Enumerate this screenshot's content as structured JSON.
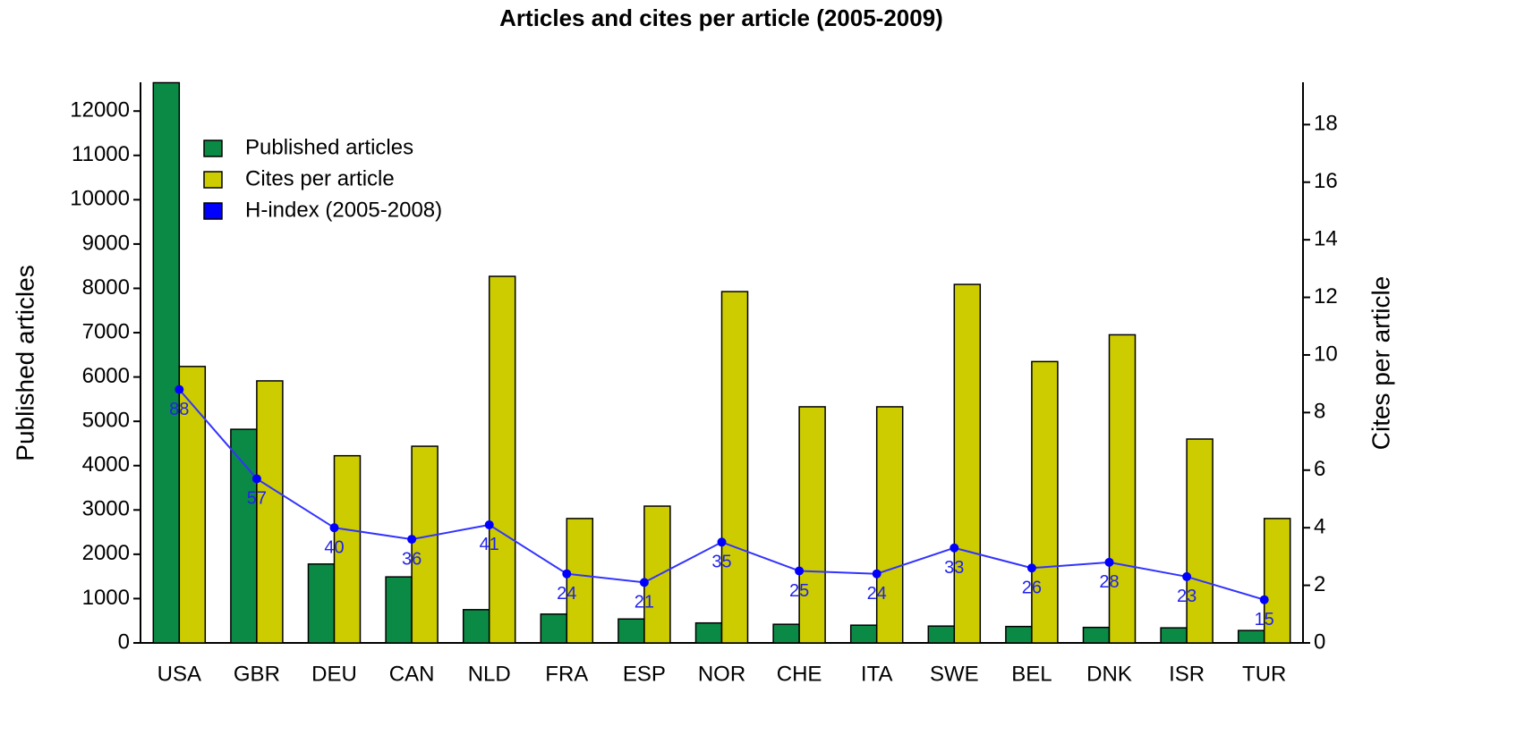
{
  "chart_data": {
    "type": "bar",
    "title": "Articles and cites per article (2005-2009)",
    "y_label": "Published articles",
    "y2_label": "Cites per article",
    "categories": [
      "USA",
      "GBR",
      "DEU",
      "CAN",
      "NLD",
      "FRA",
      "ESP",
      "NOR",
      "CHE",
      "ITA",
      "SWE",
      "BEL",
      "DNK",
      "ISR",
      "TUR"
    ],
    "series": [
      {
        "name": "Published articles",
        "type": "bar",
        "color": "#0b8a45",
        "axis": "y",
        "values": [
          12640,
          4820,
          1780,
          1490,
          750,
          650,
          540,
          450,
          420,
          400,
          380,
          370,
          350,
          340,
          280
        ]
      },
      {
        "name": "Cites per article",
        "type": "bar",
        "color": "#cccc00",
        "axis": "y2",
        "values": [
          9.6,
          9.1,
          6.5,
          6.83,
          12.73,
          4.32,
          4.75,
          12.2,
          8.2,
          8.2,
          12.45,
          9.77,
          10.7,
          7.08,
          4.32
        ]
      },
      {
        "name": "H-index (2005-2008)",
        "type": "line",
        "color": "#0000ff",
        "line_color": "#3333ff",
        "axis": "y3",
        "values": [
          88,
          57,
          40,
          36,
          41,
          24,
          21,
          35,
          25,
          24,
          33,
          26,
          28,
          23,
          15
        ]
      }
    ],
    "ylim": [
      0,
      12650
    ],
    "yticks": [
      0,
      1000,
      2000,
      3000,
      4000,
      5000,
      6000,
      7000,
      8000,
      9000,
      10000,
      11000,
      12000
    ],
    "y2lim": [
      0,
      19.47
    ],
    "y2ticks": [
      0,
      2,
      4,
      6,
      8,
      10,
      12,
      14,
      16,
      18
    ],
    "y3lim": [
      0,
      194.7
    ],
    "legend": "upper left",
    "grid": false
  }
}
